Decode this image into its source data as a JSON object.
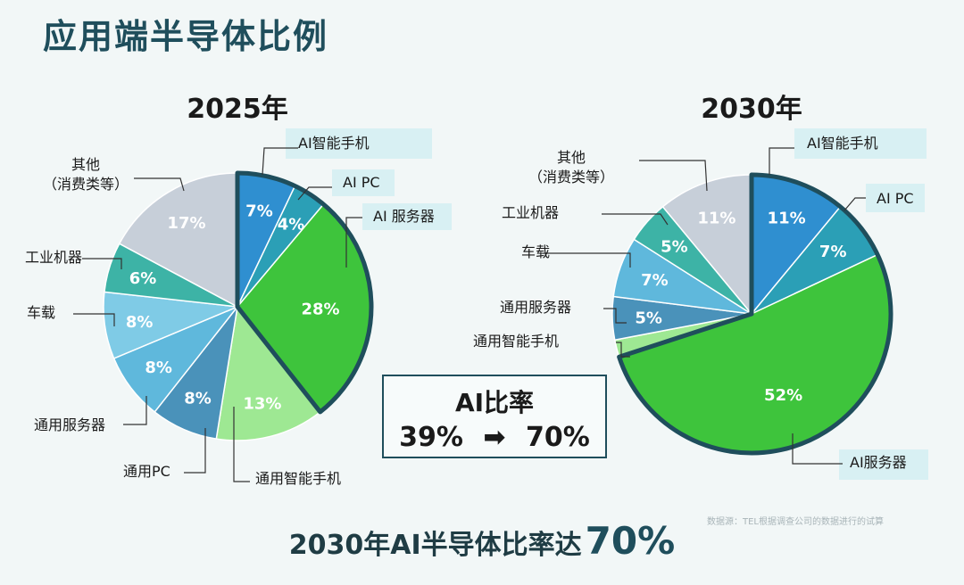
{
  "title": "应用端半导体比例",
  "ratio": {
    "title": "AI比率",
    "from": "39%",
    "arrow": "➡",
    "to": "70%"
  },
  "source_note": "数据源：TEL根据调查公司的数据进行的试算",
  "conclusion": {
    "text": "2030年AI半导体比率达",
    "highlight": "70%"
  },
  "colors": {
    "blue": "#2f8fd0",
    "teal_blue": "#2b9fb6",
    "green": "#3ec43c",
    "light_green": "#9ee893",
    "slate_blue": "#4a92ba",
    "sky_blue": "#5fb8dc",
    "light_sky": "#7fcbe6",
    "teal": "#3db3a6",
    "gray": "#c7cfd9",
    "outline": "#1f4e5c"
  },
  "chart_data": [
    {
      "type": "pie",
      "title": "2025年",
      "ai_total_percent": 39,
      "slices": [
        {
          "label": "AI智能手机",
          "value": 7,
          "text": "7%",
          "color": "#2f8fd0",
          "ai": true
        },
        {
          "label": "AI PC",
          "value": 4,
          "text": "4%",
          "color": "#2b9fb6",
          "ai": true
        },
        {
          "label": "AI 服务器",
          "value": 28,
          "text": "28%",
          "color": "#3ec43c",
          "ai": true
        },
        {
          "label": "通用智能手机",
          "value": 13,
          "text": "13%",
          "color": "#9ee893",
          "ai": false
        },
        {
          "label": "通用PC",
          "value": 8,
          "text": "8%",
          "color": "#4a92ba",
          "ai": false
        },
        {
          "label": "通用服务器",
          "value": 8,
          "text": "8%",
          "color": "#5fb8dc",
          "ai": false
        },
        {
          "label": "车载",
          "value": 8,
          "text": "8%",
          "color": "#7fcbe6",
          "ai": false
        },
        {
          "label": "工业机器",
          "value": 6,
          "text": "6%",
          "color": "#3db3a6",
          "ai": false
        },
        {
          "label": "其他\n（消费类等）",
          "value": 17,
          "text": "17%",
          "color": "#c7cfd9",
          "ai": false
        }
      ]
    },
    {
      "type": "pie",
      "title": "2030年",
      "ai_total_percent": 70,
      "slices": [
        {
          "label": "AI智能手机",
          "value": 11,
          "text": "11%",
          "color": "#2f8fd0",
          "ai": true
        },
        {
          "label": "AI PC",
          "value": 7,
          "text": "7%",
          "color": "#2b9fb6",
          "ai": true
        },
        {
          "label": "AI服务器",
          "value": 52,
          "text": "52%",
          "color": "#3ec43c",
          "ai": true
        },
        {
          "label": "通用智能手机",
          "value": 2,
          "text": "",
          "color": "#9ee893",
          "ai": false
        },
        {
          "label": "通用服务器",
          "value": 5,
          "text": "5%",
          "color": "#4a92ba",
          "ai": false
        },
        {
          "label": "车载",
          "value": 7,
          "text": "7%",
          "color": "#5fb8dc",
          "ai": false
        },
        {
          "label": "工业机器",
          "value": 5,
          "text": "5%",
          "color": "#3db3a6",
          "ai": false
        },
        {
          "label": "其他\n（消费类等）",
          "value": 11,
          "text": "11%",
          "color": "#c7cfd9",
          "ai": false
        }
      ]
    }
  ]
}
